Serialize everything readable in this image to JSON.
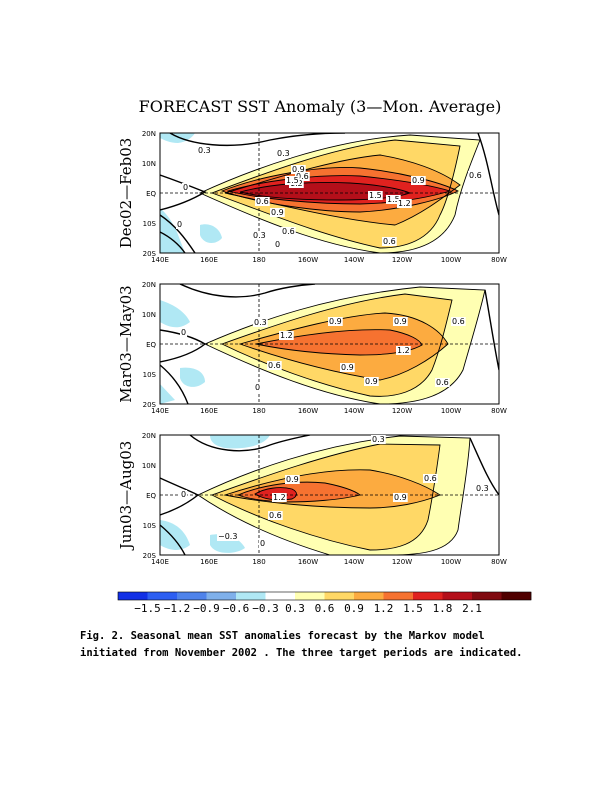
{
  "title": "FORECAST SST Anomaly (3—Mon. Average)",
  "caption": {
    "line1": "Fig. 2. Seasonal mean SST anomalies forecast by the Markov model",
    "line2": "initiated from November 2002 . The three target periods are indicated."
  },
  "chart_data": {
    "type": "contour",
    "x_ticks": [
      "140E",
      "160E",
      "180",
      "160W",
      "140W",
      "120W",
      "100W",
      "80W"
    ],
    "y_ticks": [
      "20N",
      "10N",
      "EQ",
      "10S",
      "20S"
    ],
    "colorbar": {
      "levels": [
        "−1.5",
        "−1.2",
        "−0.9",
        "−0.6",
        "−0.3",
        "0.3",
        "0.6",
        "0.9",
        "1.2",
        "1.5",
        "1.8",
        "2.1"
      ],
      "colors": [
        "#1230e6",
        "#2d5ff2",
        "#4f83ea",
        "#7fb0ea",
        "#b0e8f4",
        "#ffffff",
        "#ffffb2",
        "#ffd866",
        "#fcab40",
        "#f67230",
        "#e0221f",
        "#b40f1a",
        "#800a10",
        "#500000"
      ]
    },
    "panels": [
      {
        "label": "Dec02—Feb03",
        "contour_labels": [
          "0.3",
          "0.3",
          "0.9",
          "0.6",
          "1.2",
          "1.5",
          "1.5",
          "1.5",
          "1.2",
          "0.9",
          "0.6",
          "0",
          "0.6",
          "0.9",
          "0",
          "0.3",
          "0.6",
          "0.6",
          "0"
        ]
      },
      {
        "label": "Mar03—May03",
        "contour_labels": [
          "0.3",
          "0.9",
          "0.9",
          "0.6",
          "1.2",
          "1.2",
          "0",
          "0.6",
          "0.9",
          "0.9",
          "0.6",
          "0"
        ]
      },
      {
        "label": "Jun03—Aug03",
        "contour_labels": [
          "0.3",
          "0.9",
          "0.6",
          "0.3",
          "1.2",
          "0.9",
          "0",
          "0.6",
          "−0.3",
          "0"
        ]
      }
    ]
  }
}
